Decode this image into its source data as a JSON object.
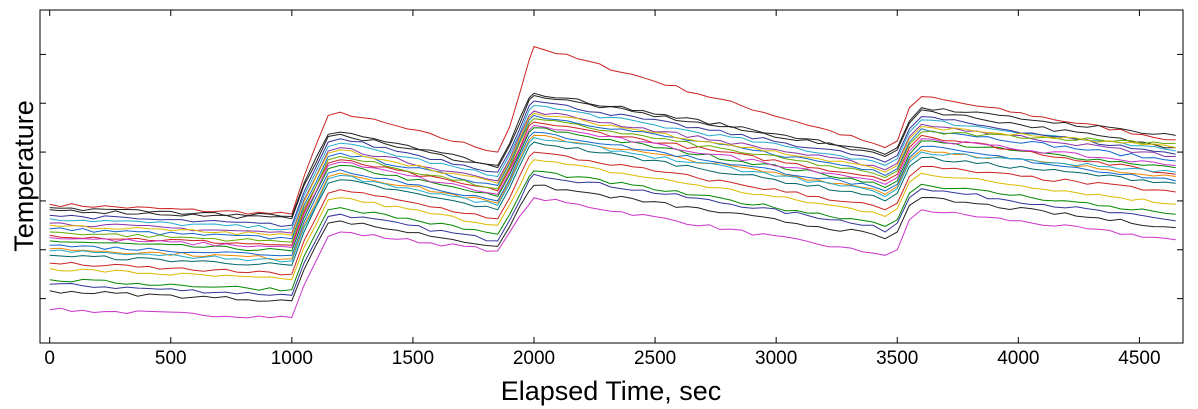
{
  "chart_data": {
    "type": "line",
    "xlabel": "Elapsed Time, sec",
    "ylabel": "Temperature",
    "xlim": [
      -40,
      4680
    ],
    "ylim": [
      0,
      300
    ],
    "xticks": [
      0,
      500,
      1000,
      1500,
      2000,
      2500,
      3000,
      3500,
      4000,
      4500
    ],
    "xtick_labels": [
      "0",
      "500",
      "1000",
      "1500",
      "2000",
      "2500",
      "3000",
      "3500",
      "4000",
      "4500"
    ],
    "yticks": [
      40,
      84,
      128,
      172,
      216,
      260
    ],
    "ytick_labels": [
      "",
      "",
      "",
      "",
      "",
      ""
    ],
    "grid": false,
    "x": [
      0,
      1000,
      1050,
      1150,
      1200,
      1850,
      1900,
      1980,
      2000,
      3400,
      3450,
      3500,
      3550,
      3600,
      4650
    ],
    "series": [
      {
        "color": "#cc2222",
        "values": [
          125,
          116,
          150,
          205,
          208,
          172,
          195,
          255,
          267,
          180,
          176,
          182,
          212,
          222,
          183
        ]
      },
      {
        "color": "#cc33cc",
        "values": [
          30,
          23,
          52,
          96,
          100,
          83,
          100,
          125,
          131,
          81,
          79,
          84,
          111,
          120,
          93
        ]
      },
      {
        "color": "#333399",
        "values": [
          53,
          43,
          72,
          114,
          116,
          92,
          111,
          147,
          152,
          106,
          100,
          108,
          131,
          139,
          110
        ]
      },
      {
        "color": "#008800",
        "values": [
          92,
          83,
          113,
          157,
          160,
          132,
          152,
          190,
          194,
          145,
          140,
          146,
          170,
          182,
          158
        ]
      },
      {
        "color": "#1166cc",
        "values": [
          103,
          94,
          124,
          168,
          171,
          142,
          162,
          201,
          205,
          156,
          151,
          157,
          181,
          193,
          164
        ]
      },
      {
        "color": "#ddbb00",
        "values": [
          67,
          57,
          86,
          129,
          131,
          106,
          125,
          160,
          165,
          118,
          114,
          121,
          145,
          153,
          125
        ]
      },
      {
        "color": "#22aacc",
        "values": [
          112,
          103,
          133,
          177,
          180,
          150,
          170,
          210,
          214,
          164,
          160,
          166,
          190,
          201,
          173
        ]
      },
      {
        "color": "#222222",
        "values": [
          120,
          112,
          142,
          186,
          188,
          158,
          178,
          219,
          223,
          172,
          168,
          174,
          198,
          210,
          176
        ]
      },
      {
        "color": "#cc2222",
        "values": [
          97,
          88,
          118,
          162,
          165,
          137,
          157,
          196,
          199,
          150,
          146,
          152,
          176,
          187,
          152
        ]
      },
      {
        "color": "#ee8800",
        "values": [
          85,
          76,
          106,
          150,
          153,
          126,
          146,
          183,
          187,
          139,
          134,
          141,
          165,
          174,
          150
        ]
      },
      {
        "color": "#8833aa",
        "values": [
          108,
          99,
          129,
          173,
          176,
          146,
          166,
          205,
          209,
          160,
          156,
          162,
          186,
          197,
          168
        ]
      },
      {
        "color": "#006666",
        "values": [
          79,
          70,
          100,
          144,
          147,
          120,
          140,
          177,
          181,
          133,
          128,
          135,
          159,
          167,
          144
        ]
      },
      {
        "color": "#333399",
        "values": [
          115,
          106,
          136,
          181,
          184,
          154,
          173,
          214,
          218,
          167,
          163,
          169,
          193,
          204,
          170
        ]
      },
      {
        "color": "#66aa00",
        "values": [
          100,
          91,
          121,
          165,
          168,
          139,
          159,
          198,
          202,
          153,
          149,
          155,
          179,
          190,
          180
        ]
      },
      {
        "color": "#cc33cc",
        "values": [
          95,
          86,
          116,
          160,
          163,
          134,
          154,
          192,
          196,
          147,
          143,
          149,
          173,
          184,
          160
        ]
      },
      {
        "color": "#222222",
        "values": [
          47,
          38,
          66,
          108,
          110,
          87,
          105,
          137,
          142,
          98,
          94,
          100,
          124,
          131,
          104
        ]
      },
      {
        "color": "#1166cc",
        "values": [
          88,
          79,
          109,
          153,
          156,
          128,
          148,
          186,
          190,
          141,
          137,
          143,
          167,
          177,
          146
        ]
      },
      {
        "color": "#008800",
        "values": [
          57,
          48,
          78,
          120,
          122,
          98,
          116,
          150,
          155,
          109,
          105,
          111,
          135,
          143,
          116
        ]
      },
      {
        "color": "#cc2222",
        "values": [
          72,
          62,
          92,
          135,
          138,
          112,
          131,
          168,
          172,
          124,
          120,
          126,
          150,
          159,
          136
        ]
      },
      {
        "color": "#22aacc",
        "values": [
          83,
          74,
          104,
          148,
          151,
          124,
          144,
          181,
          185,
          137,
          132,
          139,
          163,
          172,
          154
        ]
      },
      {
        "color": "#ddbb00",
        "values": [
          106,
          97,
          127,
          171,
          174,
          144,
          164,
          203,
          207,
          158,
          154,
          160,
          184,
          195,
          176
        ]
      },
      {
        "color": "#222222",
        "values": [
          122,
          114,
          144,
          188,
          190,
          160,
          180,
          221,
          225,
          174,
          170,
          176,
          200,
          212,
          187
        ]
      }
    ]
  }
}
